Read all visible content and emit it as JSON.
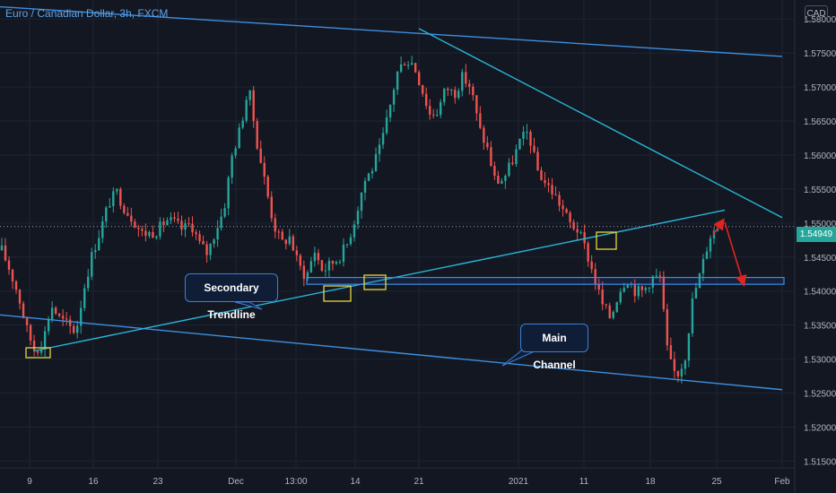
{
  "header": {
    "title": "Euro / Canadian Dollar, 3h, FXCM"
  },
  "currency_badge": "CAD",
  "last_price": "1.54949",
  "colors": {
    "background": "#131722",
    "grid": "#1c2433",
    "up_candle": "#26a69a",
    "down_candle": "#ef5350",
    "trendline": "#29b6d8",
    "channel_line": "#3d8fe0",
    "marker": "#e6d73c",
    "arrow": "#e02424"
  },
  "annotations": {
    "secondary": "Secondary Trendline",
    "main": "Main Channel"
  },
  "chart_data": {
    "type": "candlestick",
    "title": "Euro / Canadian Dollar, 3h, FXCM",
    "y_ticks": [
      "1.58000",
      "1.57500",
      "1.57000",
      "1.56500",
      "1.56000",
      "1.55500",
      "1.55000",
      "1.54500",
      "1.54000",
      "1.53500",
      "1.53000",
      "1.52500",
      "1.52000",
      "1.51500"
    ],
    "ylim": [
      1.514,
      1.5828
    ],
    "x_ticks": [
      "9",
      "16",
      "23",
      "Dec",
      "13:00",
      "14",
      "21",
      "2021",
      "11",
      "18",
      "25",
      "Feb"
    ],
    "price_series": [
      1.546,
      1.543,
      1.5395,
      1.5345,
      1.5312,
      1.5325,
      1.538,
      1.536,
      1.535,
      1.534,
      1.5405,
      1.5455,
      1.549,
      1.553,
      1.5545,
      1.552,
      1.5505,
      1.5485,
      1.5485,
      1.549,
      1.5505,
      1.55,
      1.549,
      1.55,
      1.547,
      1.5455,
      1.549,
      1.552,
      1.56,
      1.564,
      1.57,
      1.562,
      1.556,
      1.55,
      1.547,
      1.548,
      1.544,
      1.542,
      1.546,
      1.543,
      1.544,
      1.545,
      1.547,
      1.551,
      1.556,
      1.558,
      1.561,
      1.566,
      1.572,
      1.574,
      1.5735,
      1.57,
      1.566,
      1.5665,
      1.57,
      1.569,
      1.5715,
      1.57,
      1.564,
      1.561,
      1.556,
      1.5565,
      1.559,
      1.562,
      1.5635,
      1.558,
      1.556,
      1.5545,
      1.5525,
      1.55,
      1.549,
      1.546,
      1.542,
      1.538,
      1.536,
      1.54,
      1.542,
      1.54,
      1.54,
      1.542,
      1.542,
      1.53,
      1.5275,
      1.53,
      1.539,
      1.543,
      1.548,
      1.5495
    ],
    "secondary_trendline": {
      "from": [
        "9",
        1.5312
      ],
      "to": [
        "25",
        1.5519
      ]
    },
    "main_channel": {
      "upper": {
        "from": [
          "start",
          1.5818
        ],
        "to": [
          "Feb",
          1.5745
        ]
      },
      "lower": {
        "from": [
          "start",
          1.5365
        ],
        "to": [
          "Feb",
          1.5255
        ]
      }
    },
    "descending_resistance": {
      "from": [
        "21",
        1.5786
      ],
      "to": [
        "Feb",
        1.5508
      ]
    },
    "support_zone": [
      1.541,
      1.542
    ],
    "last_price": 1.54949
  }
}
